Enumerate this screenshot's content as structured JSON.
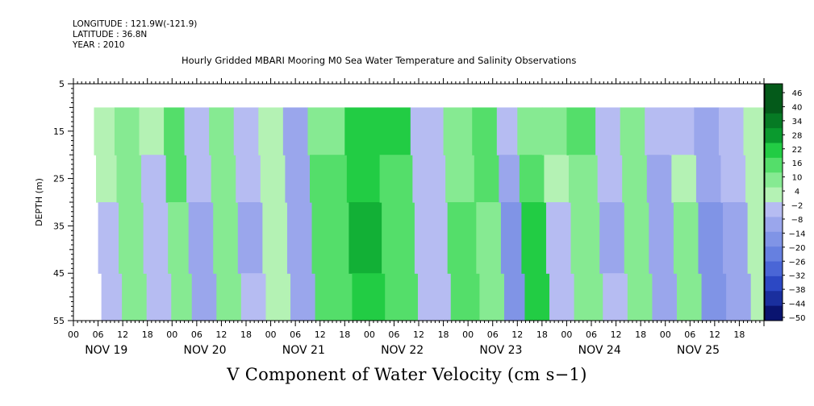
{
  "header": {
    "longitude": "LONGITUDE : 121.9W(-121.9)",
    "latitude": "LATITUDE : 36.8N",
    "year": "YEAR : 2010",
    "title": "Hourly Gridded MBARI Mooring M0 Sea Water Temperature and Salinity Observations"
  },
  "chart_data": {
    "type": "heatmap",
    "title": "Hourly Gridded MBARI Mooring M0 Sea Water Temperature and Salinity Observations",
    "xlabel": "V Component of Water Velocity (cm s−1)",
    "ylabel": "DEPTH (m)",
    "ylim": [
      55,
      5
    ],
    "y_ticks": [
      "5",
      "15",
      "25",
      "35",
      "45",
      "55"
    ],
    "data_depth_range": [
      10,
      55
    ],
    "x_hour_ticks": [
      "00",
      "06",
      "12",
      "18"
    ],
    "x_date_labels": [
      "NOV 19",
      "NOV 20",
      "NOV 21",
      "NOV 22",
      "NOV 23",
      "NOV 24",
      "NOV 25"
    ],
    "x_range_hours": [
      0,
      168
    ],
    "data_start_hour": 5,
    "colorbar": {
      "levels": [
        46,
        40,
        34,
        28,
        22,
        16,
        10,
        4,
        -2,
        -8,
        -14,
        -20,
        -26,
        -32,
        -38,
        -44,
        -50
      ],
      "min": -50,
      "max": 50
    },
    "bands_hours": [
      {
        "start": 5,
        "end": 10,
        "mid": -3,
        "surf": 4
      },
      {
        "start": 10,
        "end": 16,
        "mid": 8,
        "surf": 6
      },
      {
        "start": 16,
        "end": 22,
        "mid": -6,
        "surf": 2
      },
      {
        "start": 22,
        "end": 27,
        "mid": 10,
        "surf": 14
      },
      {
        "start": 27,
        "end": 33,
        "mid": -10,
        "surf": -4
      },
      {
        "start": 33,
        "end": 39,
        "mid": 6,
        "surf": 8
      },
      {
        "start": 39,
        "end": 45,
        "mid": -8,
        "surf": -6
      },
      {
        "start": 45,
        "end": 51,
        "mid": 4,
        "surf": 2
      },
      {
        "start": 51,
        "end": 57,
        "mid": -12,
        "surf": -8
      },
      {
        "start": 57,
        "end": 66,
        "mid": 16,
        "surf": 6
      },
      {
        "start": 66,
        "end": 74,
        "mid": 24,
        "surf": 18
      },
      {
        "start": 74,
        "end": 82,
        "mid": 12,
        "surf": 20
      },
      {
        "start": 82,
        "end": 90,
        "mid": -6,
        "surf": -4
      },
      {
        "start": 90,
        "end": 97,
        "mid": 14,
        "surf": 6
      },
      {
        "start": 97,
        "end": 103,
        "mid": 8,
        "surf": 14
      },
      {
        "start": 103,
        "end": 108,
        "mid": -18,
        "surf": -4
      },
      {
        "start": 108,
        "end": 114,
        "mid": 18,
        "surf": 8
      },
      {
        "start": 114,
        "end": 120,
        "mid": -4,
        "surf": 6
      },
      {
        "start": 120,
        "end": 127,
        "mid": 8,
        "surf": 12
      },
      {
        "start": 127,
        "end": 133,
        "mid": -8,
        "surf": -2
      },
      {
        "start": 133,
        "end": 139,
        "mid": 6,
        "surf": 10
      },
      {
        "start": 139,
        "end": 145,
        "mid": -10,
        "surf": -6
      },
      {
        "start": 145,
        "end": 151,
        "mid": 8,
        "surf": -4
      },
      {
        "start": 151,
        "end": 157,
        "mid": -16,
        "surf": -8
      },
      {
        "start": 157,
        "end": 163,
        "mid": -10,
        "surf": -4
      },
      {
        "start": 163,
        "end": 168,
        "mid": 4,
        "surf": 2
      }
    ]
  }
}
